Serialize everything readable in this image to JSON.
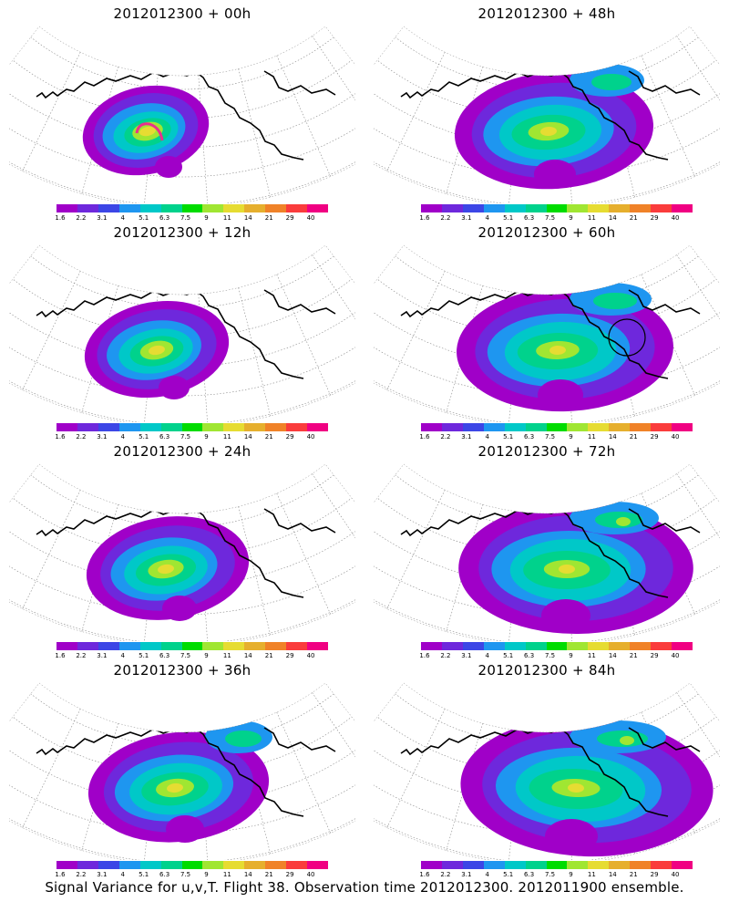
{
  "panels": [
    {
      "title": "2012012300 + 00h",
      "stage": 0
    },
    {
      "title": "2012012300 + 48h",
      "stage": 4
    },
    {
      "title": "2012012300 + 12h",
      "stage": 1
    },
    {
      "title": "2012012300 + 60h",
      "stage": 5
    },
    {
      "title": "2012012300 + 24h",
      "stage": 2
    },
    {
      "title": "2012012300 + 72h",
      "stage": 6
    },
    {
      "title": "2012012300 + 36h",
      "stage": 3
    },
    {
      "title": "2012012300 + 84h",
      "stage": 7
    }
  ],
  "colorbar": {
    "labels": [
      "1.6",
      "2.2",
      "3.1",
      "4",
      "5.1",
      "6.3",
      "7.5",
      "9",
      "11",
      "14",
      "21",
      "29",
      "40"
    ],
    "colors": [
      "#a000c8",
      "#6e28dc",
      "#3c46e6",
      "#1e96f0",
      "#00c8c8",
      "#00d28c",
      "#00dc00",
      "#a0e632",
      "#e6dc32",
      "#e6af2d",
      "#f08228",
      "#fa3c3c",
      "#f00082"
    ]
  },
  "footer": "Signal Variance for u,v,T. Flight 38. Observation time 2012012300. 2012011900 ensemble."
}
